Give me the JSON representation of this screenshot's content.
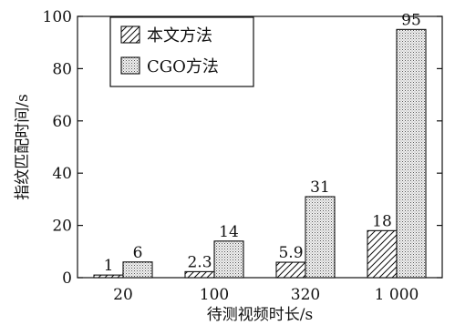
{
  "chart_data": {
    "type": "bar",
    "categories": [
      "20",
      "100",
      "320",
      "1 000"
    ],
    "series": [
      {
        "name": "本文方法",
        "values": [
          1,
          2.3,
          5.9,
          18
        ],
        "labels": [
          "1",
          "2.3",
          "5.9",
          "18"
        ],
        "pattern": "diagonal-hatch"
      },
      {
        "name": "CGO方法",
        "values": [
          6,
          14,
          31,
          95
        ],
        "labels": [
          "6",
          "14",
          "31",
          "95"
        ],
        "pattern": "dots"
      }
    ],
    "title": "",
    "xlabel": "待测视频时长/s",
    "ylabel": "指纹匹配时间/s",
    "ylim": [
      0,
      100
    ],
    "yticks": [
      0,
      20,
      40,
      60,
      80,
      100
    ],
    "grid": false,
    "legend_position": "top-left"
  }
}
